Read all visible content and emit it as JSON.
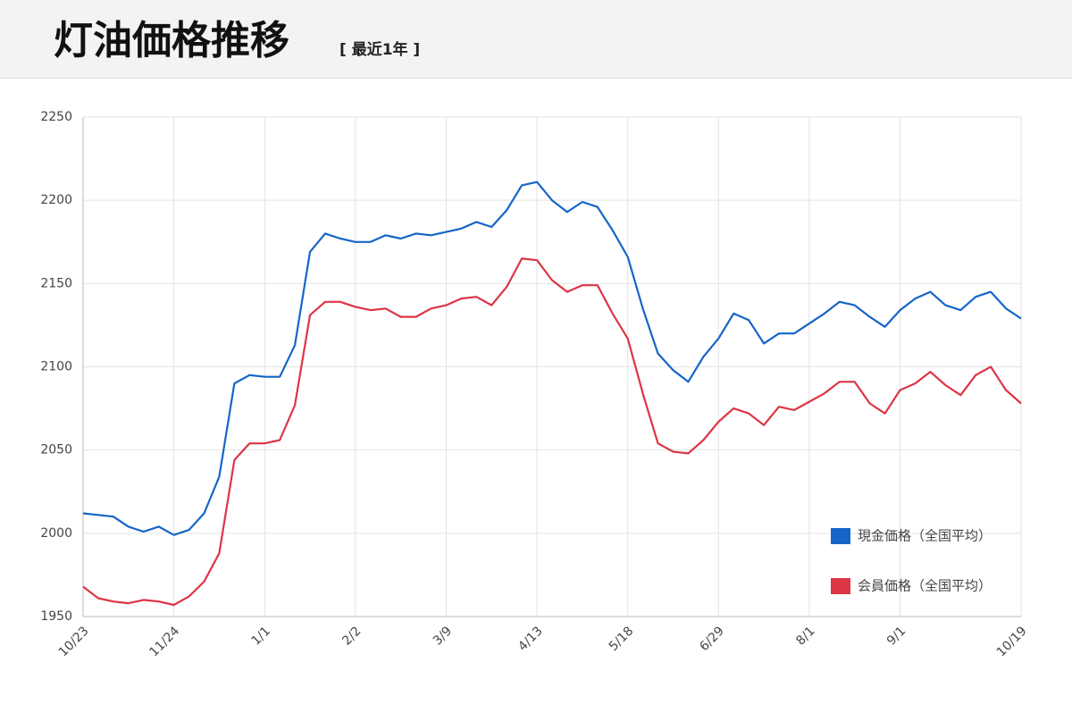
{
  "chart_data": {
    "type": "line",
    "title": "灯油価格推移",
    "subtitle": "[ 最近1年 ]",
    "categories": [
      "10/23",
      null,
      null,
      null,
      null,
      null,
      "11/24",
      null,
      null,
      null,
      null,
      null,
      "1/1",
      null,
      null,
      null,
      null,
      null,
      "2/2",
      null,
      null,
      null,
      null,
      null,
      "3/9",
      null,
      null,
      null,
      null,
      null,
      "4/13",
      null,
      null,
      null,
      null,
      null,
      "5/18",
      null,
      null,
      null,
      null,
      null,
      "6/29",
      null,
      null,
      null,
      null,
      null,
      "8/1",
      null,
      null,
      null,
      null,
      null,
      "9/1",
      null,
      null,
      null,
      null,
      null,
      null,
      null,
      "10/19"
    ],
    "series": [
      {
        "name": "現金価格（全国平均）",
        "color": "#1565c8",
        "values": [
          2012,
          2011,
          2010,
          2004,
          2001,
          2004,
          1999,
          2002,
          2012,
          2034,
          2090,
          2095,
          2094,
          2094,
          2113,
          2169,
          2180,
          2177,
          2175,
          2175,
          2179,
          2177,
          2180,
          2179,
          2181,
          2183,
          2187,
          2184,
          2194,
          2209,
          2211,
          2200,
          2193,
          2199,
          2196,
          2182,
          2166,
          2135,
          2108,
          2098,
          2091,
          2106,
          2117,
          2132,
          2128,
          2114,
          2120,
          2120,
          2126,
          2132,
          2139,
          2137,
          2130,
          2124,
          2134,
          2141,
          2145,
          2137,
          2134,
          2142,
          2145,
          2135,
          2129
        ]
      },
      {
        "name": "会員価格（全国平均）",
        "color": "#dc3545",
        "values": [
          1968,
          1961,
          1959,
          1958,
          1960,
          1959,
          1957,
          1962,
          1971,
          1988,
          2044,
          2054,
          2054,
          2056,
          2077,
          2131,
          2139,
          2139,
          2136,
          2134,
          2135,
          2130,
          2130,
          2135,
          2137,
          2141,
          2142,
          2137,
          2148,
          2165,
          2164,
          2152,
          2145,
          2149,
          2149,
          2132,
          2117,
          2084,
          2054,
          2049,
          2048,
          2056,
          2067,
          2075,
          2072,
          2065,
          2076,
          2074,
          2079,
          2084,
          2091,
          2091,
          2078,
          2072,
          2086,
          2090,
          2097,
          2089,
          2083,
          2095,
          2100,
          2086,
          2078
        ]
      }
    ],
    "ylim": [
      1950,
      2250
    ],
    "yticks": [
      1950,
      2000,
      2050,
      2100,
      2150,
      2200,
      2250
    ],
    "grid": true,
    "legend": "lower right"
  }
}
